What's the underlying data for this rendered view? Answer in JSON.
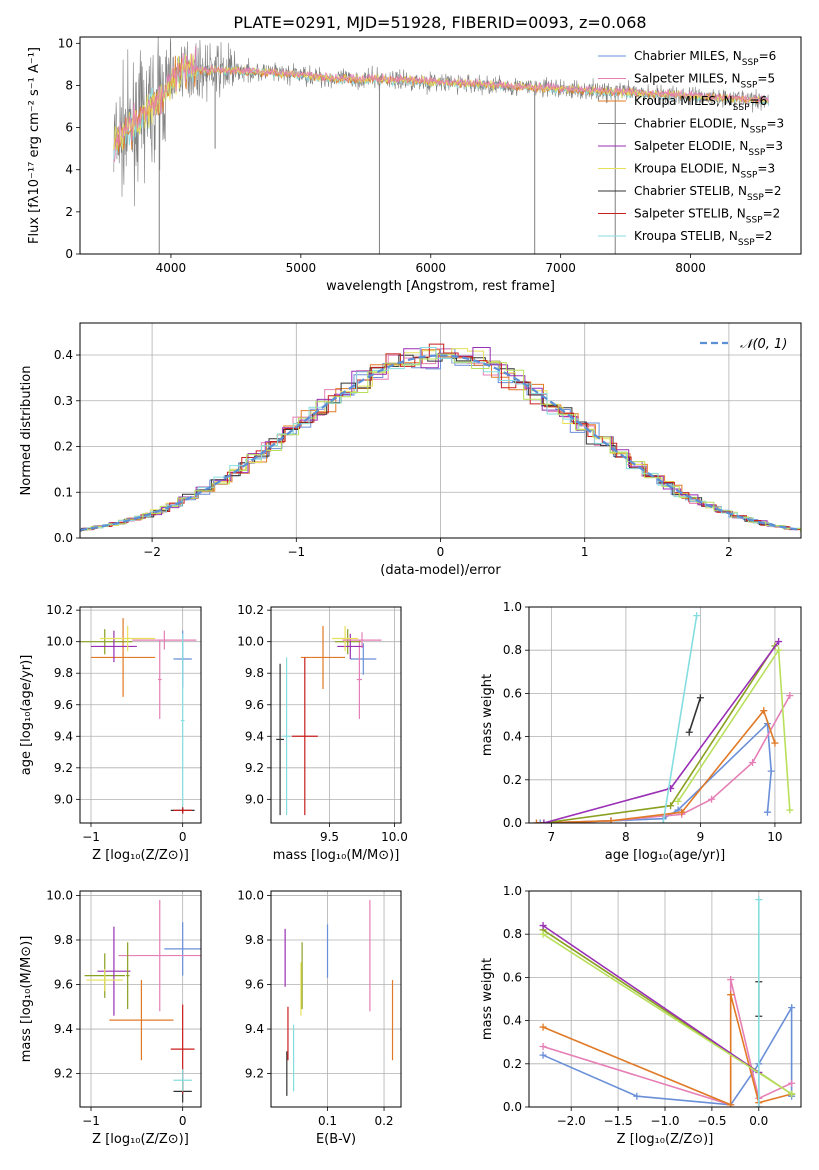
{
  "title": "PLATE=0291, MJD=51928, FIBERID=0093, z=0.068",
  "colors": {
    "Chabrier MILES": "#6a8fd8",
    "Salpeter MILES": "#e57fb5",
    "Kroupa MILES": "#e07a26",
    "Chabrier ELODIE": "#777777",
    "Salpeter ELODIE": "#9a2fb5",
    "Kroupa ELODIE": "#e6e05a",
    "Chabrier STELIB": "#333333",
    "Salpeter STELIB": "#c81e1e",
    "Kroupa STELIB": "#86dde0",
    "lime": "#b8e05a",
    "olive": "#8aa020",
    "data": "#7f7f7f"
  },
  "chart_data": [
    {
      "id": "spectrum",
      "type": "line",
      "title": "PLATE=0291, MJD=51928, FIBERID=0093, z=0.068",
      "xlabel": "wavelength [Angstrom, rest frame]",
      "ylabel": "Flux [fλ10⁻¹⁷ erg cm⁻² s⁻¹ A⁻¹]",
      "xlim": [
        3300,
        8850
      ],
      "ylim": [
        0,
        10.3
      ],
      "xticks": [
        4000,
        5000,
        6000,
        7000,
        8000
      ],
      "yticks": [
        0,
        2,
        4,
        6,
        8,
        10
      ],
      "legend_position": "top-right",
      "legend": [
        {
          "label": "Chabrier MILES, N",
          "sub": "SSP",
          "tail": "=6",
          "color": "Chabrier MILES"
        },
        {
          "label": "Salpeter MILES, N",
          "sub": "SSP",
          "tail": "=5",
          "color": "Salpeter MILES"
        },
        {
          "label": "Kroupa MILES, N",
          "sub": "SSP",
          "tail": "=6",
          "color": "Kroupa MILES"
        },
        {
          "label": "Chabrier ELODIE, N",
          "sub": "SSP",
          "tail": "=3",
          "color": "Chabrier ELODIE"
        },
        {
          "label": "Salpeter ELODIE, N",
          "sub": "SSP",
          "tail": "=3",
          "color": "Salpeter ELODIE"
        },
        {
          "label": "Kroupa ELODIE, N",
          "sub": "SSP",
          "tail": "=3",
          "color": "Kroupa ELODIE"
        },
        {
          "label": "Chabrier STELIB, N",
          "sub": "SSP",
          "tail": "=2",
          "color": "Chabrier STELIB"
        },
        {
          "label": "Salpeter STELIB, N",
          "sub": "SSP",
          "tail": "=2",
          "color": "Salpeter STELIB"
        },
        {
          "label": "Kroupa STELIB, N",
          "sub": "SSP",
          "tail": "=2",
          "color": "Kroupa STELIB"
        }
      ],
      "continuum": [
        [
          3560,
          5.2
        ],
        [
          3650,
          5.8
        ],
        [
          3750,
          6.3
        ],
        [
          3850,
          7.0
        ],
        [
          3950,
          7.6
        ],
        [
          4000,
          8.3
        ],
        [
          4100,
          8.8
        ],
        [
          4300,
          8.7
        ],
        [
          4500,
          8.7
        ],
        [
          4800,
          8.6
        ],
        [
          5000,
          8.5
        ],
        [
          5300,
          8.3
        ],
        [
          5600,
          8.3
        ],
        [
          5900,
          8.2
        ],
        [
          6200,
          8.1
        ],
        [
          6500,
          8.0
        ],
        [
          6800,
          7.9
        ],
        [
          7100,
          7.8
        ],
        [
          7400,
          7.7
        ],
        [
          7700,
          7.6
        ],
        [
          8000,
          7.5
        ],
        [
          8300,
          7.4
        ],
        [
          8600,
          7.3
        ]
      ],
      "spikes": [
        [
          3910,
          0
        ],
        [
          4340,
          5.0
        ],
        [
          5605,
          0
        ],
        [
          6800,
          0
        ],
        [
          7420,
          0
        ]
      ]
    },
    {
      "id": "residuals",
      "type": "histogram",
      "xlabel": "(data-model)/error",
      "ylabel": "Normed distribution",
      "xlim": [
        -2.5,
        2.5
      ],
      "ylim": [
        0,
        0.47
      ],
      "xticks": [
        -2,
        -1,
        0,
        1,
        2
      ],
      "yticks": [
        0.0,
        0.1,
        0.2,
        0.3,
        0.4
      ],
      "legend": "𝒩(0, 1)",
      "legend_position": "top-right"
    },
    {
      "id": "age_vs_Z",
      "type": "scatter",
      "xlabel": "Z [log₁₀(Z/Z⊙)]",
      "ylabel": "age  [log₁₀(age/yr)]",
      "xlim": [
        -1.12,
        0.2
      ],
      "ylim": [
        8.85,
        10.22
      ],
      "xticks": [
        -1,
        0
      ],
      "yticks": [
        9.0,
        9.2,
        9.4,
        9.6,
        9.8,
        10.0,
        10.2
      ],
      "points": [
        {
          "x": 0.0,
          "y": 9.89,
          "xerr": 0.1,
          "yerr": 0.18,
          "color": "Chabrier MILES"
        },
        {
          "x": -0.25,
          "y": 9.76,
          "xerr": 0.02,
          "yerr": 0.25,
          "color": "Salpeter MILES"
        },
        {
          "x": -0.65,
          "y": 9.9,
          "xerr": 0.35,
          "yerr": 0.25,
          "color": "Kroupa MILES"
        },
        {
          "x": -0.85,
          "y": 10.0,
          "xerr": 0.3,
          "yerr": 0.08,
          "color": "olive"
        },
        {
          "x": -0.75,
          "y": 9.97,
          "xerr": 0.25,
          "yerr": 0.1,
          "color": "Salpeter ELODIE"
        },
        {
          "x": -0.6,
          "y": 10.02,
          "xerr": 0.3,
          "yerr": 0.08,
          "color": "Kroupa ELODIE"
        },
        {
          "x": 0.0,
          "y": 8.93,
          "xerr": 0.13,
          "yerr": 0.02,
          "color": "Chabrier STELIB"
        },
        {
          "x": 0.0,
          "y": 8.93,
          "xerr": 0.1,
          "yerr": 0.02,
          "color": "Salpeter STELIB"
        },
        {
          "x": -0.2,
          "y": 10.01,
          "xerr": 0.35,
          "yerr": 0.06,
          "color": "Salpeter MILES"
        },
        {
          "x": 0.0,
          "y": 9.5,
          "xerr": 0.02,
          "yerr": 0.55,
          "color": "Kroupa STELIB"
        }
      ]
    },
    {
      "id": "age_vs_mass",
      "type": "scatter",
      "xlabel": "mass [log₁₀(M/M⊙)]",
      "xlim": [
        9.05,
        10.05
      ],
      "ylim": [
        8.85,
        10.22
      ],
      "xticks": [
        9.5,
        10.0
      ],
      "yticks": [
        9.0,
        9.2,
        9.4,
        9.6,
        9.8,
        10.0,
        10.2
      ],
      "points": [
        {
          "x": 9.76,
          "y": 9.89,
          "xerr": 0.1,
          "yerr": 0.1,
          "color": "Chabrier MILES"
        },
        {
          "x": 9.73,
          "y": 9.76,
          "xerr": 0.02,
          "yerr": 0.25,
          "color": "Salpeter MILES"
        },
        {
          "x": 9.45,
          "y": 9.9,
          "xerr": 0.17,
          "yerr": 0.2,
          "color": "Kroupa MILES"
        },
        {
          "x": 9.64,
          "y": 10.0,
          "xerr": 0.1,
          "yerr": 0.08,
          "color": "olive"
        },
        {
          "x": 9.66,
          "y": 9.97,
          "xerr": 0.1,
          "yerr": 0.08,
          "color": "Salpeter ELODIE"
        },
        {
          "x": 9.62,
          "y": 10.02,
          "xerr": 0.1,
          "yerr": 0.08,
          "color": "Kroupa ELODIE"
        },
        {
          "x": 9.12,
          "y": 9.38,
          "xerr": 0.03,
          "yerr": 0.48,
          "color": "Chabrier STELIB"
        },
        {
          "x": 9.31,
          "y": 9.4,
          "xerr": 0.1,
          "yerr": 0.5,
          "color": "Salpeter STELIB"
        },
        {
          "x": 9.75,
          "y": 10.01,
          "xerr": 0.15,
          "yerr": 0.05,
          "color": "Salpeter MILES"
        },
        {
          "x": 9.17,
          "y": 9.4,
          "xerr": 0.03,
          "yerr": 0.5,
          "color": "Kroupa STELIB"
        }
      ]
    },
    {
      "id": "weight_vs_age",
      "type": "line",
      "xlabel": "age  [log₁₀(age/yr)]",
      "ylabel": "mass weight",
      "xlim": [
        6.7,
        10.35
      ],
      "ylim": [
        0,
        1
      ],
      "xticks": [
        7,
        8,
        9,
        10
      ],
      "yticks": [
        0.0,
        0.2,
        0.4,
        0.6,
        0.8,
        1.0
      ],
      "series": [
        {
          "color": "Chabrier MILES",
          "x": [
            6.85,
            7.8,
            8.5,
            8.7,
            9.9,
            9.95,
            9.9
          ],
          "y": [
            0,
            0.01,
            0.02,
            0.06,
            0.46,
            0.24,
            0.05
          ]
        },
        {
          "color": "Salpeter MILES",
          "x": [
            6.8,
            7.8,
            8.75,
            9.15,
            9.7,
            10.2
          ],
          "y": [
            0,
            0.01,
            0.04,
            0.11,
            0.28,
            0.59
          ]
        },
        {
          "color": "Kroupa MILES",
          "x": [
            6.8,
            7.8,
            8.75,
            9.85,
            10.0
          ],
          "y": [
            0,
            0.01,
            0.05,
            0.52,
            0.37
          ]
        },
        {
          "color": "olive",
          "x": [
            6.9,
            8.6,
            10.0
          ],
          "y": [
            0,
            0.08,
            0.82
          ]
        },
        {
          "color": "Salpeter ELODIE",
          "x": [
            6.9,
            8.6,
            10.05
          ],
          "y": [
            0,
            0.16,
            0.84
          ]
        },
        {
          "color": "lime",
          "x": [
            8.7,
            10.05,
            10.2
          ],
          "y": [
            0.1,
            0.8,
            0.06
          ]
        },
        {
          "color": "Chabrier STELIB",
          "x": [
            8.85,
            9.0
          ],
          "y": [
            0.42,
            0.58
          ]
        },
        {
          "color": "Kroupa STELIB",
          "x": [
            8.5,
            8.95
          ],
          "y": [
            0,
            0.96
          ]
        }
      ]
    },
    {
      "id": "mass_vs_Z",
      "type": "scatter",
      "xlabel": "Z [log₁₀(Z/Z⊙)]",
      "ylabel": "mass [log₁₀(M/M⊙)]",
      "xlim": [
        -1.12,
        0.2
      ],
      "ylim": [
        9.05,
        10.02
      ],
      "xticks": [
        -1,
        0
      ],
      "yticks": [
        9.2,
        9.4,
        9.6,
        9.8,
        10.0
      ],
      "points": [
        {
          "x": 0.0,
          "y": 9.76,
          "xerr": 0.2,
          "yerr": 0.12,
          "color": "Chabrier MILES"
        },
        {
          "x": -0.25,
          "y": 9.73,
          "xerr": 0.45,
          "yerr": 0.25,
          "color": "Salpeter MILES"
        },
        {
          "x": -0.45,
          "y": 9.44,
          "xerr": 0.35,
          "yerr": 0.18,
          "color": "Kroupa MILES"
        },
        {
          "x": -0.85,
          "y": 9.64,
          "xerr": 0.22,
          "yerr": 0.1,
          "color": "olive"
        },
        {
          "x": -0.75,
          "y": 9.66,
          "xerr": 0.18,
          "yerr": 0.2,
          "color": "Salpeter ELODIE"
        },
        {
          "x": -0.85,
          "y": 9.62,
          "xerr": 0.2,
          "yerr": 0.05,
          "color": "Kroupa ELODIE"
        },
        {
          "x": -0.6,
          "y": 9.64,
          "xerr": 0.02,
          "yerr": 0.15,
          "color": "olive"
        },
        {
          "x": 0.0,
          "y": 9.12,
          "xerr": 0.1,
          "yerr": 0.05,
          "color": "Chabrier STELIB"
        },
        {
          "x": 0.0,
          "y": 9.31,
          "xerr": 0.13,
          "yerr": 0.2,
          "color": "Salpeter STELIB"
        },
        {
          "x": 0.0,
          "y": 9.17,
          "xerr": 0.1,
          "yerr": 0.05,
          "color": "Kroupa STELIB"
        }
      ]
    },
    {
      "id": "mass_vs_ebv",
      "type": "scatter",
      "xlabel": "E(B-V)",
      "xlim": [
        0.0,
        0.23
      ],
      "ylim": [
        9.05,
        10.02
      ],
      "xticks": [
        0.1,
        0.2
      ],
      "yticks": [
        9.2,
        9.4,
        9.6,
        9.8,
        10.0
      ],
      "points": [
        {
          "x": 0.1,
          "y": 9.75,
          "xerr": 0,
          "yerr": 0.12,
          "color": "Chabrier MILES"
        },
        {
          "x": 0.175,
          "y": 9.73,
          "xerr": 0,
          "yerr": 0.25,
          "color": "Salpeter MILES"
        },
        {
          "x": 0.215,
          "y": 9.44,
          "xerr": 0,
          "yerr": 0.18,
          "color": "Kroupa MILES"
        },
        {
          "x": 0.055,
          "y": 9.64,
          "xerr": 0,
          "yerr": 0.15,
          "color": "olive"
        },
        {
          "x": 0.025,
          "y": 9.72,
          "xerr": 0,
          "yerr": 0.13,
          "color": "Salpeter ELODIE"
        },
        {
          "x": 0.053,
          "y": 9.58,
          "xerr": 0,
          "yerr": 0.12,
          "color": "Kroupa ELODIE"
        },
        {
          "x": 0.028,
          "y": 9.2,
          "xerr": 0,
          "yerr": 0.1,
          "color": "Chabrier STELIB"
        },
        {
          "x": 0.03,
          "y": 9.38,
          "xerr": 0,
          "yerr": 0.12,
          "color": "Salpeter STELIB"
        },
        {
          "x": 0.04,
          "y": 9.27,
          "xerr": 0,
          "yerr": 0.15,
          "color": "Kroupa STELIB"
        }
      ]
    },
    {
      "id": "weight_vs_Z",
      "type": "line",
      "xlabel": "Z [log₁₀(Z/Z⊙)]",
      "ylabel": "mass weight",
      "xlim": [
        -2.45,
        0.45
      ],
      "ylim": [
        0,
        1
      ],
      "xticks": [
        -2.0,
        -1.5,
        -1.0,
        -0.5,
        0.0
      ],
      "yticks": [
        0.0,
        0.2,
        0.4,
        0.6,
        0.8,
        1.0
      ],
      "series": [
        {
          "color": "Chabrier MILES",
          "x": [
            -2.3,
            -1.3,
            -0.3,
            0.0,
            0.35,
            0.35
          ],
          "y": [
            0.24,
            0.05,
            0.01,
            0.2,
            0.46,
            0.05
          ]
        },
        {
          "color": "Salpeter MILES",
          "x": [
            -2.3,
            -0.3,
            -0.3,
            0.0,
            0.35
          ],
          "y": [
            0.28,
            0.01,
            0.59,
            0.04,
            0.11
          ]
        },
        {
          "color": "Kroupa MILES",
          "x": [
            -2.3,
            -0.3,
            -0.3,
            0.0,
            0.35
          ],
          "y": [
            0.37,
            0.01,
            0.52,
            0.02,
            0.06
          ]
        },
        {
          "color": "olive",
          "x": [
            -2.3,
            0.35
          ],
          "y": [
            0.82,
            0.06
          ]
        },
        {
          "color": "Salpeter ELODIE",
          "x": [
            -2.3,
            0.0,
            0.0
          ],
          "y": [
            0.84,
            0.16,
            0.0
          ]
        },
        {
          "color": "lime",
          "x": [
            -2.3,
            0.35
          ],
          "y": [
            0.8,
            0.06
          ]
        },
        {
          "color": "Chabrier STELIB",
          "x": [
            0.0,
            0.0
          ],
          "y": [
            0.42,
            0.58
          ]
        },
        {
          "color": "Kroupa STELIB",
          "x": [
            0.0,
            0.0
          ],
          "y": [
            0.0,
            0.96
          ]
        }
      ]
    }
  ]
}
